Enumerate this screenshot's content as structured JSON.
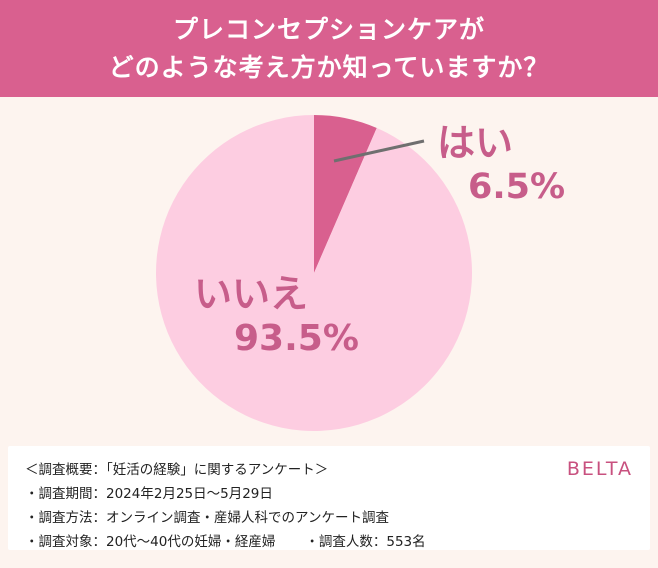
{
  "header": {
    "title_line1": "プレコンセプションケアが",
    "title_line2": "どのような考え方か知っていますか？"
  },
  "chart_data": {
    "type": "pie",
    "title": "プレコンセプションケアがどのような考え方か知っていますか？",
    "categories": [
      "はい",
      "いいえ"
    ],
    "values": [
      6.5,
      93.5
    ],
    "unit": "%",
    "colors": [
      "#d9608f",
      "#fdcde1"
    ],
    "start_angle_deg": 0,
    "direction": "clockwise",
    "labels": {
      "yes": {
        "name": "はい",
        "value": "6.5%"
      },
      "no": {
        "name": "いいえ",
        "value": "93.5%"
      }
    },
    "legend": "none"
  },
  "colors": {
    "header_bg": "#d9608f",
    "background": "#fdf4ef",
    "label_text": "#c75d8a",
    "leader_line": "#6f6f6f",
    "brand": "#c8517f"
  },
  "footer": {
    "summary": "＜調査概要：「妊活の経験」に関するアンケート＞",
    "period": "・調査期間：2024年2月25日〜5月29日",
    "method": "・調査方法：オンライン調査・産婦人科でのアンケート調査",
    "target": "・調査対象：20代〜40代の妊婦・経産婦",
    "respondents": "・調査人数：553名",
    "brand": "BELTA"
  }
}
